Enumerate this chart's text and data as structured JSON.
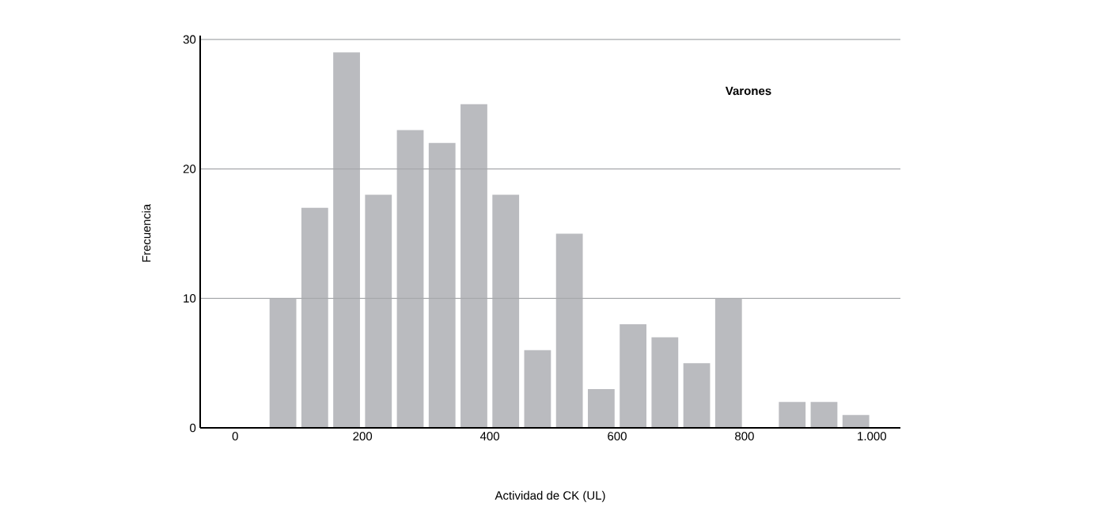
{
  "chart_data": {
    "type": "histogram",
    "bins": [
      50,
      100,
      150,
      200,
      250,
      300,
      350,
      400,
      450,
      500,
      550,
      600,
      650,
      700,
      750,
      800,
      850,
      900,
      950,
      1000
    ],
    "values": [
      10,
      17,
      29,
      18,
      23,
      22,
      25,
      18,
      6,
      15,
      3,
      8,
      7,
      5,
      10,
      0,
      2,
      2,
      1
    ],
    "color": "#babbbf",
    "xlabel": "Actividad de CK (UL)",
    "ylabel": "Frecuencia",
    "annotations": [
      "Varones"
    ],
    "xlim": [
      -55,
      1045
    ],
    "ylim": [
      0,
      30.3
    ],
    "xticks": [
      0,
      200,
      400,
      600,
      800,
      {
        "value": 1000,
        "label": "1.000"
      }
    ],
    "yticks": [
      0,
      10,
      20,
      30
    ],
    "grid": "y"
  }
}
